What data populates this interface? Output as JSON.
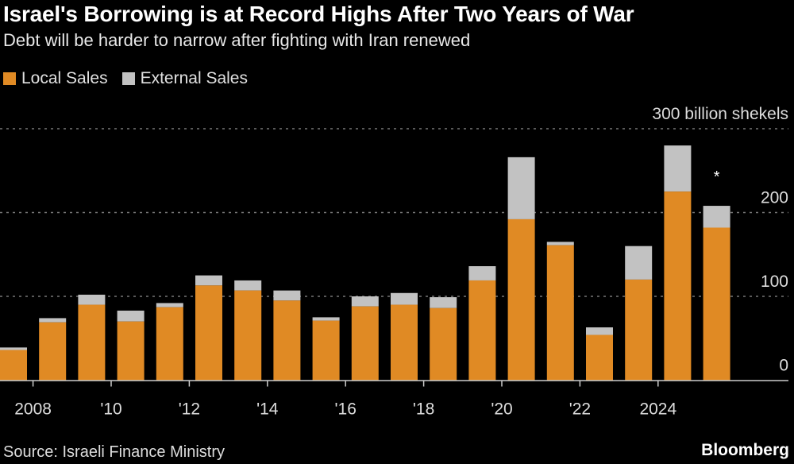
{
  "title": "Israel's Borrowing is at Record Highs After Two Years of War",
  "subtitle": "Debt will be harder to narrow after fighting with Iran renewed",
  "source": "Source: Israeli Finance Ministry",
  "brand": "Bloomberg",
  "colors": {
    "local": "#e08a24",
    "external": "#c2c2c2",
    "background": "#000000",
    "grid": "#777777"
  },
  "chart_data": {
    "type": "bar",
    "stacked": true,
    "x": [
      2007,
      2008,
      2009,
      2010,
      2011,
      2012,
      2013,
      2014,
      2015,
      2016,
      2017,
      2018,
      2019,
      2020,
      2021,
      2022,
      2023,
      2024,
      2025
    ],
    "series": [
      {
        "name": "Local Sales",
        "values": [
          36,
          69,
          90,
          70,
          87,
          113,
          107,
          95,
          71,
          88,
          90,
          86,
          119,
          192,
          161,
          54,
          120,
          225,
          182
        ]
      },
      {
        "name": "External Sales",
        "values": [
          3,
          5,
          12,
          13,
          5,
          12,
          12,
          12,
          4,
          12,
          14,
          13,
          17,
          74,
          4,
          9,
          40,
          55,
          26
        ]
      }
    ],
    "ylim": [
      0,
      300
    ],
    "yticks": [
      0,
      100,
      200,
      300
    ],
    "ytick_labels": [
      "0",
      "100",
      "200",
      "300 billion shekels"
    ],
    "xtick_years": [
      2008,
      2010,
      2012,
      2014,
      2016,
      2018,
      2020,
      2022,
      2024
    ],
    "xtick_labels": [
      "2008",
      "'10",
      "'12",
      "'14",
      "'16",
      "'18",
      "'20",
      "'22",
      "2024"
    ],
    "annotation": {
      "year": 2025,
      "text": "*"
    },
    "legend_position": "top-left",
    "grid": true
  }
}
